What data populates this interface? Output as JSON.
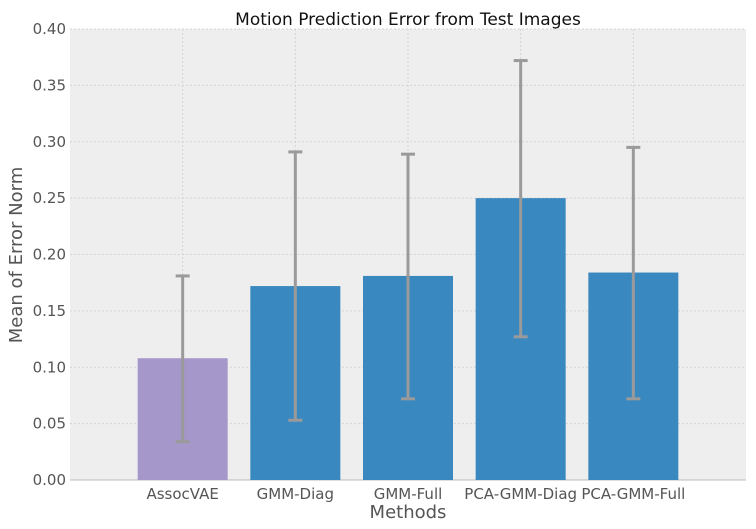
{
  "chart_data": {
    "type": "bar",
    "title": "Motion Prediction Error from Test Images",
    "xlabel": "Methods",
    "ylabel": "Mean of Error Norm",
    "categories": [
      "AssocVAE",
      "GMM-Diag",
      "GMM-Full",
      "PCA-GMM-Diag",
      "PCA-GMM-Full"
    ],
    "values": [
      0.108,
      0.172,
      0.181,
      0.25,
      0.184
    ],
    "error_low": [
      0.034,
      0.053,
      0.072,
      0.127,
      0.072
    ],
    "error_high": [
      0.181,
      0.291,
      0.289,
      0.372,
      0.295
    ],
    "bar_colors": [
      "#a597c9",
      "#3a88c0",
      "#3a88c0",
      "#3a88c0",
      "#3a88c0"
    ],
    "errorbar_color": "#9a9a9a",
    "background_color": "#eeeeee",
    "ylim": [
      0,
      0.4
    ],
    "yticks": [
      "0.00",
      "0.05",
      "0.10",
      "0.15",
      "0.20",
      "0.25",
      "0.30",
      "0.35",
      "0.40"
    ],
    "grid": true,
    "legend": "none"
  }
}
